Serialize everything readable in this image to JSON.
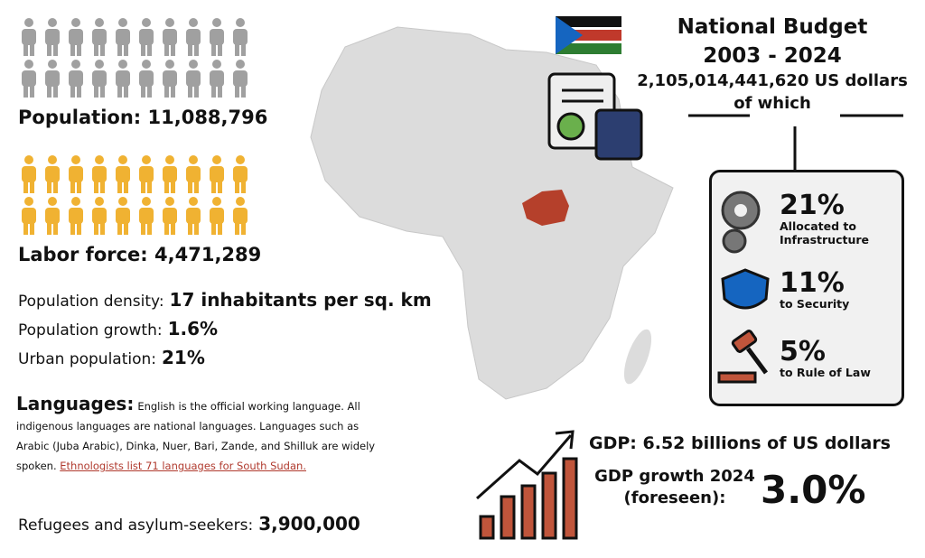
{
  "population": {
    "label": "Population:",
    "value": "11,088,796"
  },
  "labor_force": {
    "label": "Labor force:",
    "value": "4,471,289"
  },
  "stats": [
    {
      "label": "Population density:",
      "value": "17 inhabitants per sq. km"
    },
    {
      "label": "Population growth:",
      "value": "1.6%"
    },
    {
      "label": "Urban population:",
      "value": "21%"
    }
  ],
  "languages": {
    "heading": "Languages:",
    "text": "English is the official working language. All indigenous languages are national languages. Languages such as Arabic (Juba Arabic), Dinka, Nuer, Bari, Zande, and Shilluk are widely spoken.",
    "link": "Ethnologists list 71 languages for South Sudan."
  },
  "refugees": {
    "label": "Refugees and asylum-seekers:",
    "value": "3,900,000"
  },
  "budget": {
    "title": "National Budget",
    "period": "2003 - 2024",
    "total": "2,105,014,441,620 US dollars",
    "connector": "of which",
    "allocations": [
      {
        "percent": "21%",
        "label": "Allocated to Infrastructure"
      },
      {
        "percent": "11%",
        "label": "to Security"
      },
      {
        "percent": "5%",
        "label": "to Rule of Law"
      }
    ]
  },
  "gdp": {
    "label": "GDP: 6.52 billions of US dollars",
    "growth_label": "GDP growth 2024 (foreseen):",
    "growth_value": "3.0%"
  }
}
